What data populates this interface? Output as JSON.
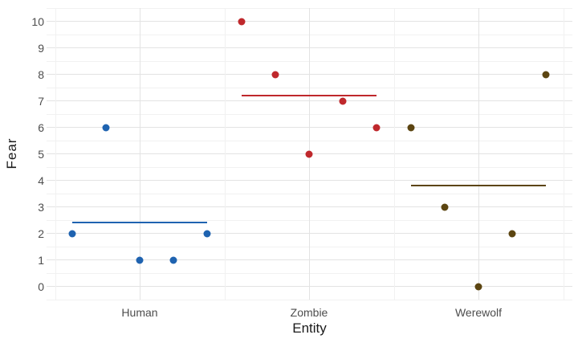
{
  "chart_data": {
    "type": "scatter",
    "subtype": "jitter-strip-plot-with-group-means",
    "title": "",
    "xlabel": "Entity",
    "ylabel": "Fear",
    "categories": [
      "Human",
      "Zombie",
      "Werewolf"
    ],
    "series": [
      {
        "name": "Human",
        "color": "#1f63b0",
        "values": [
          2,
          6,
          1,
          1,
          2
        ],
        "mean": 2.4
      },
      {
        "name": "Zombie",
        "color": "#bf282c",
        "values": [
          10,
          8,
          5,
          7,
          6
        ],
        "mean": 7.2
      },
      {
        "name": "Werewolf",
        "color": "#5c4511",
        "values": [
          6,
          3,
          0,
          2,
          8
        ],
        "mean": 3.8
      }
    ],
    "point_offsets": [
      -0.4,
      -0.2,
      0,
      0.2,
      0.4
    ],
    "mean_line_halfwidth": 0.4,
    "yticks": [
      0,
      1,
      2,
      3,
      4,
      5,
      6,
      7,
      8,
      9,
      10
    ],
    "ylim": [
      -0.5,
      10.5
    ],
    "grid": {
      "on": true,
      "major_color": "#e3e3e3",
      "minor_color": "#f1f1f1"
    },
    "legend_position": "none",
    "colors": {
      "background": "#ffffff",
      "tick_label": "#4d4d4d",
      "axis_title": "#1a1a1a"
    }
  }
}
